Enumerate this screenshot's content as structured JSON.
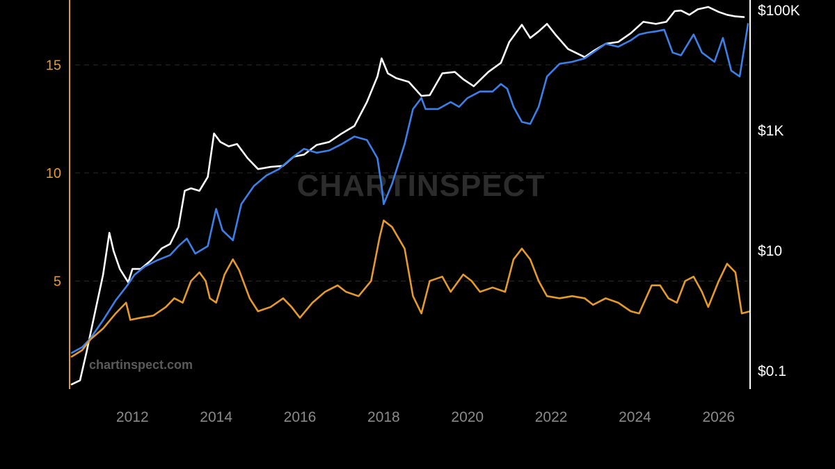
{
  "watermark": {
    "brand": "CHARTINSPECT",
    "url": "chartinspect.com"
  },
  "colors": {
    "background": "#000000",
    "left_axis": "#e69a28",
    "right_axis": "#ffffff",
    "grid": "#2a2a2a",
    "x_tick": "#8a8a8a"
  },
  "chart_data": {
    "type": "line",
    "xlim": [
      2010.5,
      2026.75
    ],
    "x_ticks": [
      {
        "value": 2012,
        "label": "2012"
      },
      {
        "value": 2014,
        "label": "2014"
      },
      {
        "value": 2016,
        "label": "2016"
      },
      {
        "value": 2018,
        "label": "2018"
      },
      {
        "value": 2020,
        "label": "2020"
      },
      {
        "value": 2022,
        "label": "2022"
      },
      {
        "value": 2024,
        "label": "2024"
      },
      {
        "value": 2026,
        "label": "2026"
      }
    ],
    "y_left": {
      "range": [
        0,
        18
      ],
      "ticks": [
        {
          "value": 5,
          "label": "5"
        },
        {
          "value": 10,
          "label": "10"
        },
        {
          "value": 15,
          "label": "15"
        }
      ]
    },
    "y_right": {
      "scale": "log",
      "range": [
        0.05,
        150000
      ],
      "ticks": [
        {
          "value": 0.1,
          "label": "$0.1"
        },
        {
          "value": 10,
          "label": "$10"
        },
        {
          "value": 1000,
          "label": "$1K"
        },
        {
          "value": 100000,
          "label": "$100K"
        }
      ]
    },
    "series": [
      {
        "axis": "right",
        "color": "#ffffff",
        "points": [
          [
            2010.55,
            0.06
          ],
          [
            2010.75,
            0.07
          ],
          [
            2010.9,
            0.2
          ],
          [
            2011.1,
            0.9
          ],
          [
            2011.3,
            4
          ],
          [
            2011.45,
            20
          ],
          [
            2011.55,
            10
          ],
          [
            2011.7,
            5
          ],
          [
            2011.9,
            3
          ],
          [
            2012.0,
            5
          ],
          [
            2012.2,
            5
          ],
          [
            2012.45,
            7
          ],
          [
            2012.7,
            11
          ],
          [
            2012.9,
            13
          ],
          [
            2013.1,
            25
          ],
          [
            2013.25,
            100
          ],
          [
            2013.4,
            110
          ],
          [
            2013.6,
            100
          ],
          [
            2013.8,
            170
          ],
          [
            2013.95,
            900
          ],
          [
            2014.1,
            650
          ],
          [
            2014.3,
            550
          ],
          [
            2014.5,
            600
          ],
          [
            2014.75,
            350
          ],
          [
            2015.0,
            230
          ],
          [
            2015.3,
            250
          ],
          [
            2015.6,
            260
          ],
          [
            2015.85,
            370
          ],
          [
            2016.1,
            400
          ],
          [
            2016.4,
            580
          ],
          [
            2016.7,
            650
          ],
          [
            2017.0,
            900
          ],
          [
            2017.3,
            1200
          ],
          [
            2017.6,
            3000
          ],
          [
            2017.85,
            8000
          ],
          [
            2017.95,
            16000
          ],
          [
            2018.1,
            9000
          ],
          [
            2018.3,
            7500
          ],
          [
            2018.6,
            6500
          ],
          [
            2018.9,
            3800
          ],
          [
            2019.1,
            3900
          ],
          [
            2019.4,
            9000
          ],
          [
            2019.7,
            9500
          ],
          [
            2019.9,
            7200
          ],
          [
            2020.15,
            5500
          ],
          [
            2020.5,
            9500
          ],
          [
            2020.8,
            13500
          ],
          [
            2021.0,
            30000
          ],
          [
            2021.3,
            58000
          ],
          [
            2021.5,
            35000
          ],
          [
            2021.7,
            45000
          ],
          [
            2021.9,
            60000
          ],
          [
            2022.1,
            40000
          ],
          [
            2022.4,
            23000
          ],
          [
            2022.8,
            16800
          ],
          [
            2023.0,
            21000
          ],
          [
            2023.3,
            28000
          ],
          [
            2023.6,
            30000
          ],
          [
            2023.9,
            42000
          ],
          [
            2024.2,
            65000
          ],
          [
            2024.5,
            60000
          ],
          [
            2024.75,
            65000
          ],
          [
            2024.95,
            98000
          ],
          [
            2025.1,
            100000
          ],
          [
            2025.3,
            85000
          ],
          [
            2025.5,
            105000
          ],
          [
            2025.75,
            115000
          ],
          [
            2026.0,
            95000
          ],
          [
            2026.2,
            85000
          ],
          [
            2026.4,
            80000
          ],
          [
            2026.6,
            78000
          ]
        ]
      },
      {
        "axis": "right",
        "color": "#3a80e8",
        "points": [
          [
            2010.55,
            0.2
          ],
          [
            2010.8,
            0.25
          ],
          [
            2011.0,
            0.35
          ],
          [
            2011.3,
            0.7
          ],
          [
            2011.6,
            1.5
          ],
          [
            2011.85,
            2.5
          ],
          [
            2012.05,
            4
          ],
          [
            2012.3,
            5.5
          ],
          [
            2012.6,
            7
          ],
          [
            2012.9,
            8.5
          ],
          [
            2013.1,
            12
          ],
          [
            2013.3,
            16
          ],
          [
            2013.5,
            9
          ],
          [
            2013.8,
            12
          ],
          [
            2014.0,
            50
          ],
          [
            2014.15,
            22
          ],
          [
            2014.4,
            15
          ],
          [
            2014.6,
            60
          ],
          [
            2014.9,
            120
          ],
          [
            2015.2,
            180
          ],
          [
            2015.5,
            230
          ],
          [
            2015.8,
            350
          ],
          [
            2016.1,
            500
          ],
          [
            2016.4,
            430
          ],
          [
            2016.7,
            470
          ],
          [
            2017.0,
            600
          ],
          [
            2017.3,
            800
          ],
          [
            2017.6,
            700
          ],
          [
            2017.85,
            350
          ],
          [
            2017.95,
            120
          ],
          [
            2018.0,
            60
          ],
          [
            2018.2,
            130
          ],
          [
            2018.5,
            600
          ],
          [
            2018.7,
            2300
          ],
          [
            2018.9,
            3500
          ],
          [
            2019.0,
            2300
          ],
          [
            2019.3,
            2300
          ],
          [
            2019.6,
            3000
          ],
          [
            2019.8,
            2500
          ],
          [
            2020.0,
            3500
          ],
          [
            2020.3,
            4500
          ],
          [
            2020.6,
            4500
          ],
          [
            2020.8,
            6000
          ],
          [
            2020.95,
            5000
          ],
          [
            2021.1,
            2500
          ],
          [
            2021.3,
            1400
          ],
          [
            2021.5,
            1300
          ],
          [
            2021.7,
            2500
          ],
          [
            2021.9,
            8000
          ],
          [
            2022.2,
            13000
          ],
          [
            2022.5,
            14000
          ],
          [
            2022.8,
            16000
          ],
          [
            2023.0,
            20000
          ],
          [
            2023.3,
            28000
          ],
          [
            2023.6,
            25000
          ],
          [
            2023.9,
            32000
          ],
          [
            2024.1,
            40000
          ],
          [
            2024.3,
            43000
          ],
          [
            2024.5,
            45000
          ],
          [
            2024.7,
            48000
          ],
          [
            2024.9,
            20000
          ],
          [
            2025.1,
            18000
          ],
          [
            2025.4,
            40000
          ],
          [
            2025.6,
            20000
          ],
          [
            2025.9,
            14000
          ],
          [
            2026.1,
            35000
          ],
          [
            2026.3,
            10000
          ],
          [
            2026.5,
            8000
          ],
          [
            2026.7,
            60000
          ]
        ]
      },
      {
        "axis": "left",
        "color": "#e69a28",
        "points": [
          [
            2010.55,
            1.5
          ],
          [
            2010.8,
            1.8
          ],
          [
            2011.0,
            2.3
          ],
          [
            2011.3,
            2.8
          ],
          [
            2011.6,
            3.5
          ],
          [
            2011.85,
            4
          ],
          [
            2011.95,
            3.2
          ],
          [
            2012.2,
            3.3
          ],
          [
            2012.5,
            3.4
          ],
          [
            2012.8,
            3.8
          ],
          [
            2013.0,
            4.2
          ],
          [
            2013.2,
            4
          ],
          [
            2013.4,
            5
          ],
          [
            2013.6,
            5.4
          ],
          [
            2013.75,
            5
          ],
          [
            2013.85,
            4.2
          ],
          [
            2014.0,
            4
          ],
          [
            2014.2,
            5.3
          ],
          [
            2014.4,
            6
          ],
          [
            2014.55,
            5.5
          ],
          [
            2014.8,
            4.2
          ],
          [
            2015.0,
            3.6
          ],
          [
            2015.3,
            3.8
          ],
          [
            2015.6,
            4.2
          ],
          [
            2015.8,
            3.8
          ],
          [
            2016.0,
            3.3
          ],
          [
            2016.3,
            4
          ],
          [
            2016.6,
            4.5
          ],
          [
            2016.9,
            4.8
          ],
          [
            2017.1,
            4.5
          ],
          [
            2017.4,
            4.3
          ],
          [
            2017.7,
            5
          ],
          [
            2017.9,
            7
          ],
          [
            2018.0,
            7.8
          ],
          [
            2018.2,
            7.5
          ],
          [
            2018.5,
            6.5
          ],
          [
            2018.7,
            4.3
          ],
          [
            2018.9,
            3.5
          ],
          [
            2019.1,
            5
          ],
          [
            2019.4,
            5.2
          ],
          [
            2019.6,
            4.5
          ],
          [
            2019.9,
            5.3
          ],
          [
            2020.1,
            5
          ],
          [
            2020.3,
            4.5
          ],
          [
            2020.6,
            4.7
          ],
          [
            2020.9,
            4.5
          ],
          [
            2021.1,
            6
          ],
          [
            2021.3,
            6.5
          ],
          [
            2021.5,
            6
          ],
          [
            2021.7,
            5
          ],
          [
            2021.9,
            4.3
          ],
          [
            2022.2,
            4.2
          ],
          [
            2022.5,
            4.3
          ],
          [
            2022.8,
            4.2
          ],
          [
            2023.0,
            3.9
          ],
          [
            2023.3,
            4.2
          ],
          [
            2023.6,
            4
          ],
          [
            2023.9,
            3.6
          ],
          [
            2024.1,
            3.5
          ],
          [
            2024.4,
            4.8
          ],
          [
            2024.6,
            4.8
          ],
          [
            2024.8,
            4.2
          ],
          [
            2025.0,
            4
          ],
          [
            2025.2,
            5
          ],
          [
            2025.4,
            5.2
          ],
          [
            2025.6,
            4.5
          ],
          [
            2025.75,
            3.8
          ],
          [
            2026.0,
            5
          ],
          [
            2026.2,
            5.8
          ],
          [
            2026.4,
            5.4
          ],
          [
            2026.55,
            3.5
          ],
          [
            2026.75,
            3.6
          ]
        ]
      }
    ]
  }
}
